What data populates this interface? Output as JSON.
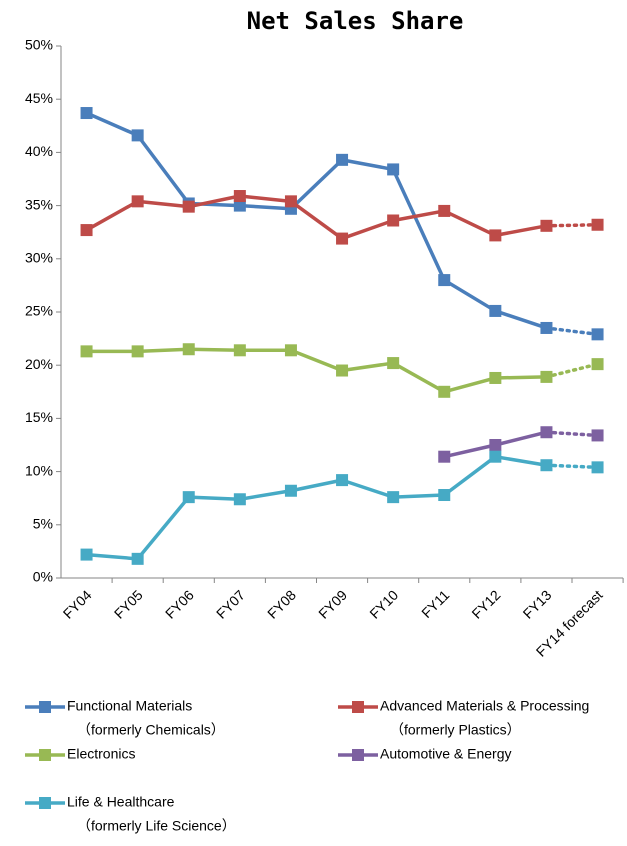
{
  "chart_data": {
    "type": "line",
    "title": "Net Sales Share",
    "categories": [
      "FY04",
      "FY05",
      "FY06",
      "FY07",
      "FY08",
      "FY09",
      "FY10",
      "FY11",
      "FY12",
      "FY13",
      "FY14 forecast"
    ],
    "last_segment_dotted": true,
    "ylim": [
      0,
      50
    ],
    "yticks": [
      {
        "value": 0,
        "label": "0%"
      },
      {
        "value": 5,
        "label": "5%"
      },
      {
        "value": 10,
        "label": "10%"
      },
      {
        "value": 15,
        "label": "15%"
      },
      {
        "value": 20,
        "label": "20%"
      },
      {
        "value": 25,
        "label": "25%"
      },
      {
        "value": 30,
        "label": "30%"
      },
      {
        "value": 35,
        "label": "35%"
      },
      {
        "value": 40,
        "label": "40%"
      },
      {
        "value": 45,
        "label": "45%"
      },
      {
        "value": 50,
        "label": "50%"
      }
    ],
    "grid": false,
    "series": [
      {
        "name": "Functional Materials",
        "former_name": "（formerly Chemicals）",
        "color": "#4a7ebb",
        "values": [
          43.7,
          41.6,
          35.2,
          35.0,
          34.7,
          39.3,
          38.4,
          28.0,
          25.1,
          23.5,
          22.9
        ]
      },
      {
        "name": "Advanced Materials & Processing",
        "former_name": "（formerly Plastics）",
        "color": "#be4b48",
        "values": [
          32.7,
          35.4,
          34.9,
          35.9,
          35.4,
          31.9,
          33.6,
          34.5,
          32.2,
          33.1,
          33.2
        ]
      },
      {
        "name": "Electronics",
        "color": "#98b954",
        "values": [
          21.3,
          21.3,
          21.5,
          21.4,
          21.4,
          19.5,
          20.2,
          17.5,
          18.8,
          18.9,
          20.1
        ]
      },
      {
        "name": "Automotive & Energy",
        "color": "#7d60a0",
        "values": [
          null,
          null,
          null,
          null,
          null,
          null,
          null,
          11.4,
          12.5,
          13.7,
          13.4
        ]
      },
      {
        "name": "Life & Healthcare",
        "former_name": "（formerly Life Science）",
        "color": "#46aac5",
        "values": [
          2.2,
          1.8,
          7.6,
          7.4,
          8.2,
          9.2,
          7.6,
          7.8,
          11.4,
          10.6,
          10.4
        ]
      }
    ]
  }
}
